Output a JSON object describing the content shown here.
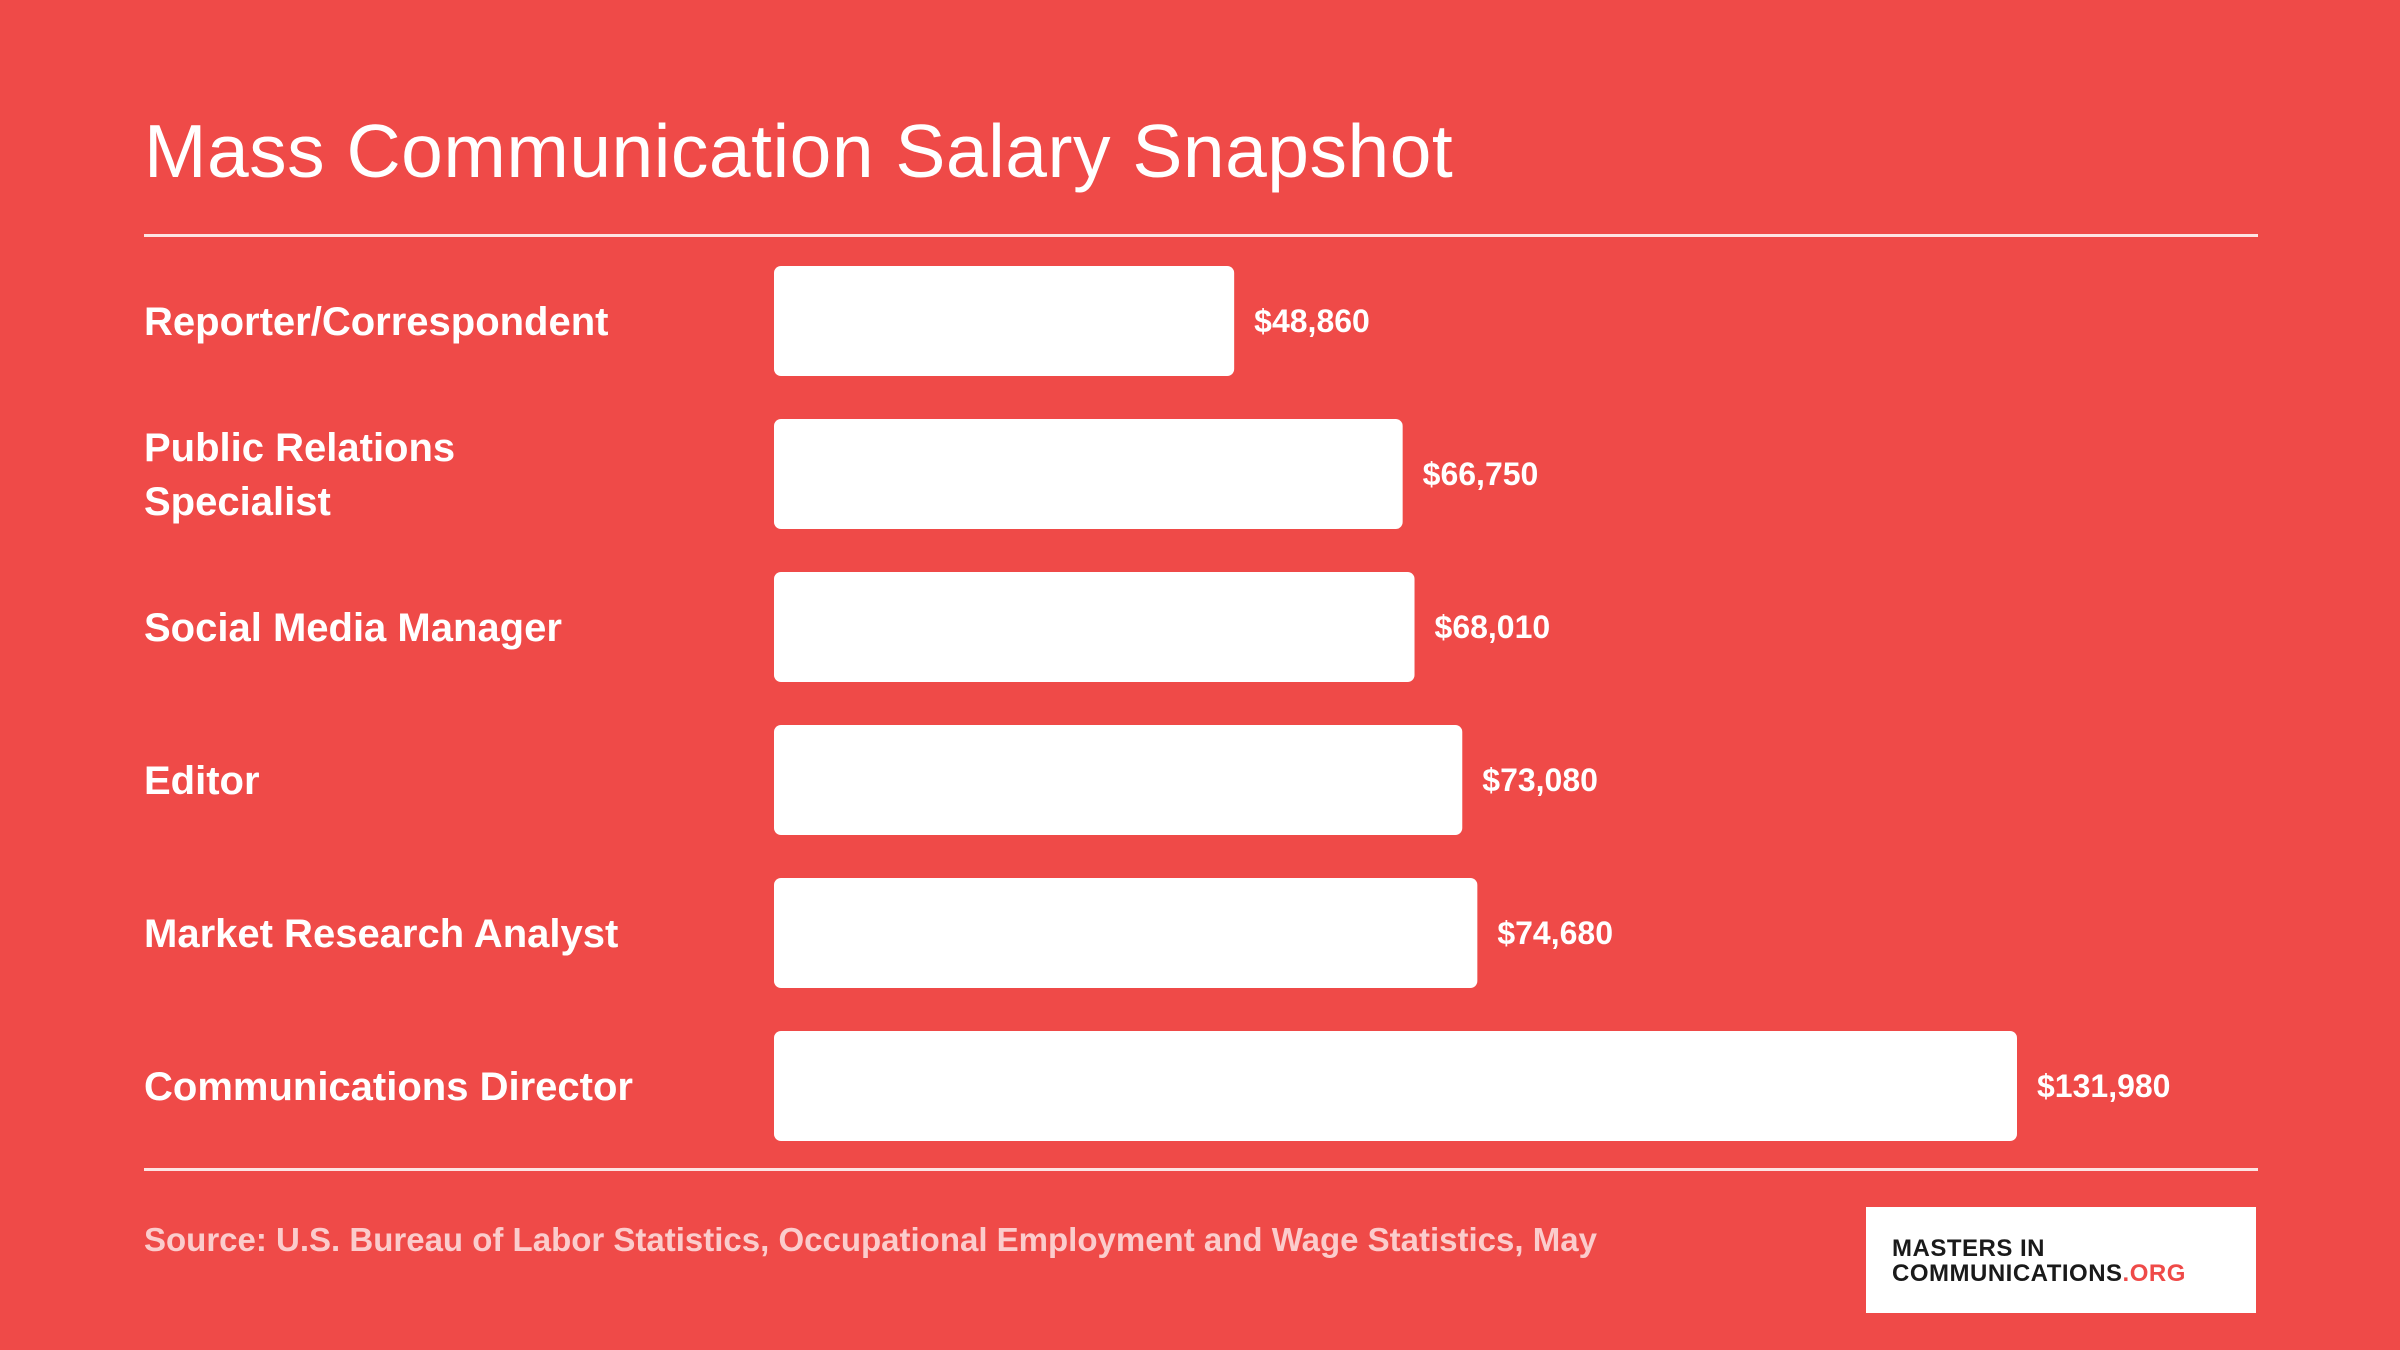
{
  "header": {
    "title": "Mass Communication Salary Snapshot"
  },
  "footer": {
    "source": "Source: U.S. Bureau of Labor Statistics, Occupational Employment and Wage Statistics, May",
    "logo_line1": "MASTERS IN",
    "logo_line2_main": "COMMUNICATIONS",
    "logo_line2_suffix": ".ORG"
  },
  "colors": {
    "background": "#ef4a48",
    "bar": "#ffffff",
    "text": "#ffffff"
  },
  "chart_data": {
    "type": "bar",
    "orientation": "horizontal",
    "title": "Mass Communication Salary Snapshot",
    "categories": [
      [
        "Reporter/Correspondent"
      ],
      [
        "Public Relations",
        "Specialist"
      ],
      [
        "Social Media Manager"
      ],
      [
        "Editor"
      ],
      [
        "Market Research Analyst"
      ],
      [
        "Communications Director"
      ]
    ],
    "values": [
      48860,
      66750,
      68010,
      73080,
      74680,
      131980
    ],
    "value_labels": [
      "$48,860",
      "$66,750",
      "$68,010",
      "$73,080",
      "$74,680",
      "$131,980"
    ],
    "xlim": [
      0,
      131980
    ],
    "grid": false,
    "legend": "none"
  }
}
